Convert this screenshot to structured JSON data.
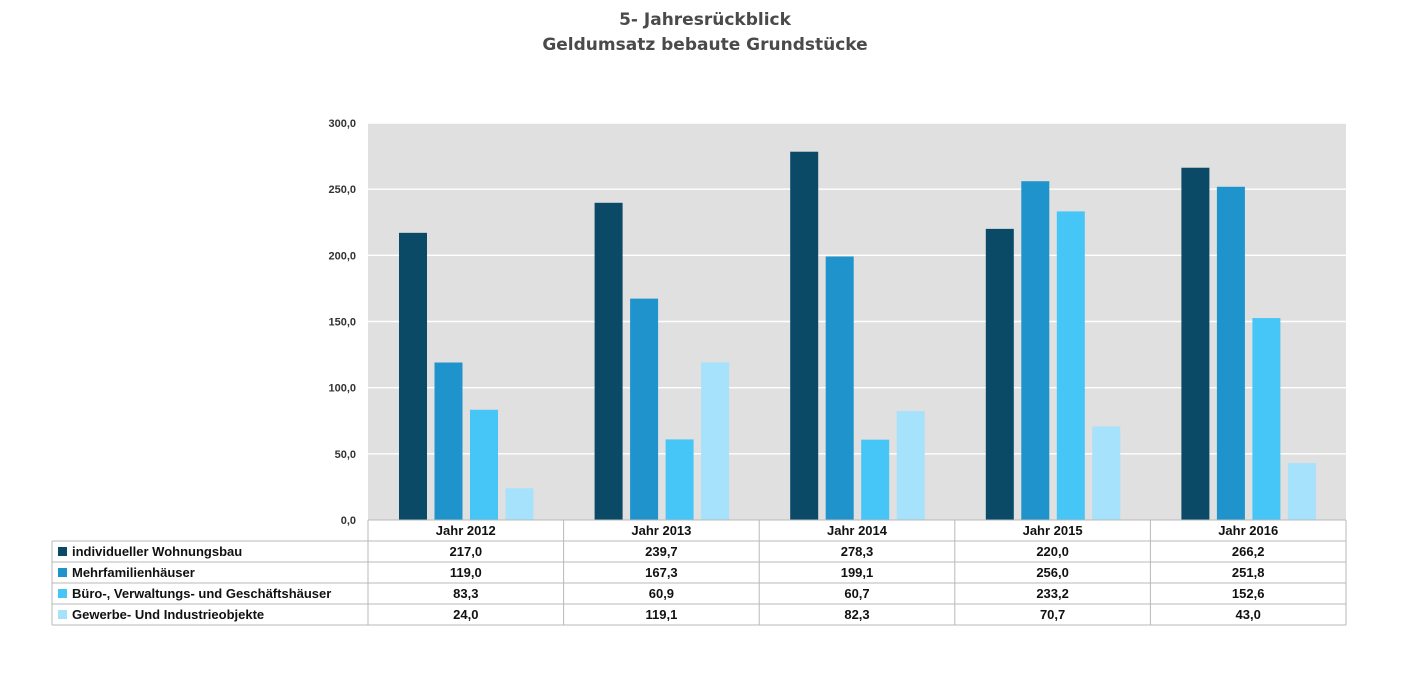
{
  "colors": {
    "series": [
      "#0a4a66",
      "#1e93cc",
      "#46c5f7",
      "#a6e2fb"
    ],
    "plot_background": "#e0e0e0",
    "gridline": "#ffffff",
    "table_border": "#b8b8b8"
  },
  "chart_data": {
    "type": "bar",
    "title": "5- Jahresrückblick",
    "subtitle": "Geldumsatz bebaute Grundstücke",
    "categories": [
      "Jahr 2012",
      "Jahr 2013",
      "Jahr 2014",
      "Jahr 2015",
      "Jahr 2016"
    ],
    "series": [
      {
        "name": "individueller Wohnungsbau",
        "values": [
          217.0,
          239.7,
          278.3,
          220.0,
          266.2
        ],
        "labels": [
          "217,0",
          "239,7",
          "278,3",
          "220,0",
          "266,2"
        ]
      },
      {
        "name": "Mehrfamilienhäuser",
        "values": [
          119.0,
          167.3,
          199.1,
          256.0,
          251.8
        ],
        "labels": [
          "119,0",
          "167,3",
          "199,1",
          "256,0",
          "251,8"
        ]
      },
      {
        "name": "Büro-, Verwaltungs- und Geschäftshäuser",
        "values": [
          83.3,
          60.9,
          60.7,
          233.2,
          152.6
        ],
        "labels": [
          "83,3",
          "60,9",
          "60,7",
          "233,2",
          "152,6"
        ]
      },
      {
        "name": "Gewerbe- Und Industrieobjekte",
        "values": [
          24.0,
          119.1,
          82.3,
          70.7,
          43.0
        ],
        "labels": [
          "24,0",
          "119,1",
          "82,3",
          "70,7",
          "43,0"
        ]
      }
    ],
    "ylim": [
      0,
      300
    ],
    "yticks": [
      0,
      50,
      100,
      150,
      200,
      250,
      300
    ],
    "ytick_labels": [
      "0,0",
      "50,0",
      "100,0",
      "150,0",
      "200,0",
      "250,0",
      "300,0"
    ],
    "grid": true,
    "legend": "data-table-below"
  }
}
